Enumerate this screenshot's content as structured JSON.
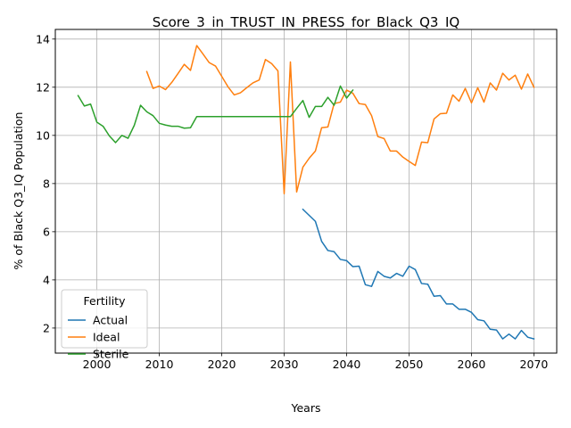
{
  "chart_data": {
    "type": "line",
    "title": "Score_3_in_TRUST_IN_PRESS_for_Black_Q3_IQ",
    "xlabel": "Years",
    "ylabel": "% of Black Q3_IQ Population",
    "xlim": [
      1993.35,
      2073.65
    ],
    "ylim": [
      0.96,
      14.4
    ],
    "xticks": [
      2000,
      2010,
      2020,
      2030,
      2040,
      2050,
      2060,
      2070
    ],
    "yticks": [
      2,
      4,
      6,
      8,
      10,
      12,
      14
    ],
    "grid": true,
    "legend": {
      "title": "Fertility",
      "position": "lower-left"
    },
    "series": [
      {
        "name": "Actual",
        "color": "#1f77b4",
        "x": [
          2033,
          2034,
          2035,
          2036,
          2037,
          2038,
          2039,
          2040,
          2041,
          2042,
          2043,
          2044,
          2045,
          2046,
          2047,
          2048,
          2049,
          2050,
          2051,
          2052,
          2053,
          2054,
          2055,
          2056,
          2057,
          2058,
          2059,
          2060,
          2061,
          2062,
          2063,
          2064,
          2065,
          2066,
          2067,
          2068,
          2069,
          2070
        ],
        "y": [
          6.93,
          6.68,
          6.43,
          5.6,
          5.22,
          5.17,
          4.85,
          4.8,
          4.55,
          4.57,
          3.8,
          3.73,
          4.35,
          4.15,
          4.08,
          4.27,
          4.15,
          4.57,
          4.43,
          3.85,
          3.82,
          3.32,
          3.35,
          3.0,
          3.0,
          2.78,
          2.78,
          2.65,
          2.35,
          2.3,
          1.95,
          1.92,
          1.55,
          1.75,
          1.55,
          1.9,
          1.62,
          1.55
        ]
      },
      {
        "name": "Ideal",
        "color": "#ff7f0e",
        "x": [
          2008,
          2009,
          2010,
          2011,
          2012,
          2013,
          2014,
          2015,
          2016,
          2017,
          2018,
          2019,
          2020,
          2021,
          2022,
          2023,
          2024,
          2025,
          2026,
          2027,
          2028,
          2029,
          2030,
          2031,
          2032,
          2033,
          2034,
          2035,
          2036,
          2037,
          2038,
          2039,
          2040,
          2041,
          2042,
          2043,
          2044,
          2045,
          2046,
          2047,
          2048,
          2049,
          2050,
          2051,
          2052,
          2053,
          2054,
          2055,
          2056,
          2057,
          2058,
          2059,
          2060,
          2061,
          2062,
          2063,
          2064,
          2065,
          2066,
          2067,
          2068,
          2069,
          2070
        ],
        "y": [
          12.65,
          11.95,
          12.05,
          11.9,
          12.2,
          12.57,
          12.95,
          12.7,
          13.73,
          13.38,
          13.02,
          12.88,
          12.45,
          12.02,
          11.68,
          11.77,
          11.98,
          12.18,
          12.3,
          13.15,
          12.98,
          12.68,
          7.58,
          13.05,
          7.65,
          8.68,
          9.05,
          9.35,
          10.32,
          10.35,
          11.32,
          11.38,
          11.88,
          11.75,
          11.32,
          11.28,
          10.82,
          9.95,
          9.87,
          9.35,
          9.35,
          9.1,
          8.92,
          8.75,
          9.72,
          9.7,
          10.68,
          10.9,
          10.92,
          11.68,
          11.42,
          11.95,
          11.35,
          11.98,
          11.38,
          12.18,
          11.88,
          12.58,
          12.3,
          12.5,
          11.92,
          12.55,
          12.0
        ]
      },
      {
        "name": "Sterile",
        "color": "#2ca02c",
        "x": [
          1997,
          1998,
          1999,
          2000,
          2001,
          2002,
          2003,
          2004,
          2005,
          2006,
          2007,
          2008,
          2009,
          2010,
          2011,
          2012,
          2013,
          2014,
          2015,
          2016,
          2017,
          2018,
          2019,
          2020,
          2021,
          2022,
          2023,
          2024,
          2025,
          2026,
          2027,
          2028,
          2029,
          2030,
          2031,
          2032,
          2033,
          2034,
          2035,
          2036,
          2037,
          2038,
          2039,
          2040,
          2041
        ],
        "y": [
          11.65,
          11.22,
          11.3,
          10.55,
          10.38,
          9.98,
          9.7,
          10.0,
          9.88,
          10.42,
          11.25,
          10.98,
          10.82,
          10.5,
          10.43,
          10.38,
          10.38,
          10.3,
          10.32,
          10.78,
          10.78,
          10.78,
          10.78,
          10.78,
          10.78,
          10.78,
          10.78,
          10.78,
          10.78,
          10.78,
          10.78,
          10.78,
          10.78,
          10.78,
          10.78,
          11.12,
          11.45,
          10.75,
          11.2,
          11.2,
          11.58,
          11.25,
          12.05,
          11.55,
          11.88
        ]
      }
    ]
  }
}
